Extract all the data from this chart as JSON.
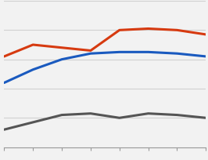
{
  "x": [
    10,
    30,
    50,
    70,
    90,
    110,
    130,
    150
  ],
  "red_line": [
    0.62,
    0.7,
    0.68,
    0.66,
    0.8,
    0.81,
    0.8,
    0.77
  ],
  "blue_line": [
    0.44,
    0.53,
    0.6,
    0.64,
    0.65,
    0.65,
    0.64,
    0.62
  ],
  "gray_line": [
    0.12,
    0.17,
    0.22,
    0.23,
    0.2,
    0.23,
    0.22,
    0.2
  ],
  "red_color": "#d63a10",
  "blue_color": "#1a5abf",
  "gray_color": "#555555",
  "background_color": "#f2f2f2",
  "grid_color": "#d0d0d0",
  "ylim": [
    0.0,
    1.0
  ],
  "xlim": [
    10,
    150
  ],
  "linewidth": 2.2,
  "figsize": [
    2.66,
    2.05
  ],
  "dpi": 100
}
